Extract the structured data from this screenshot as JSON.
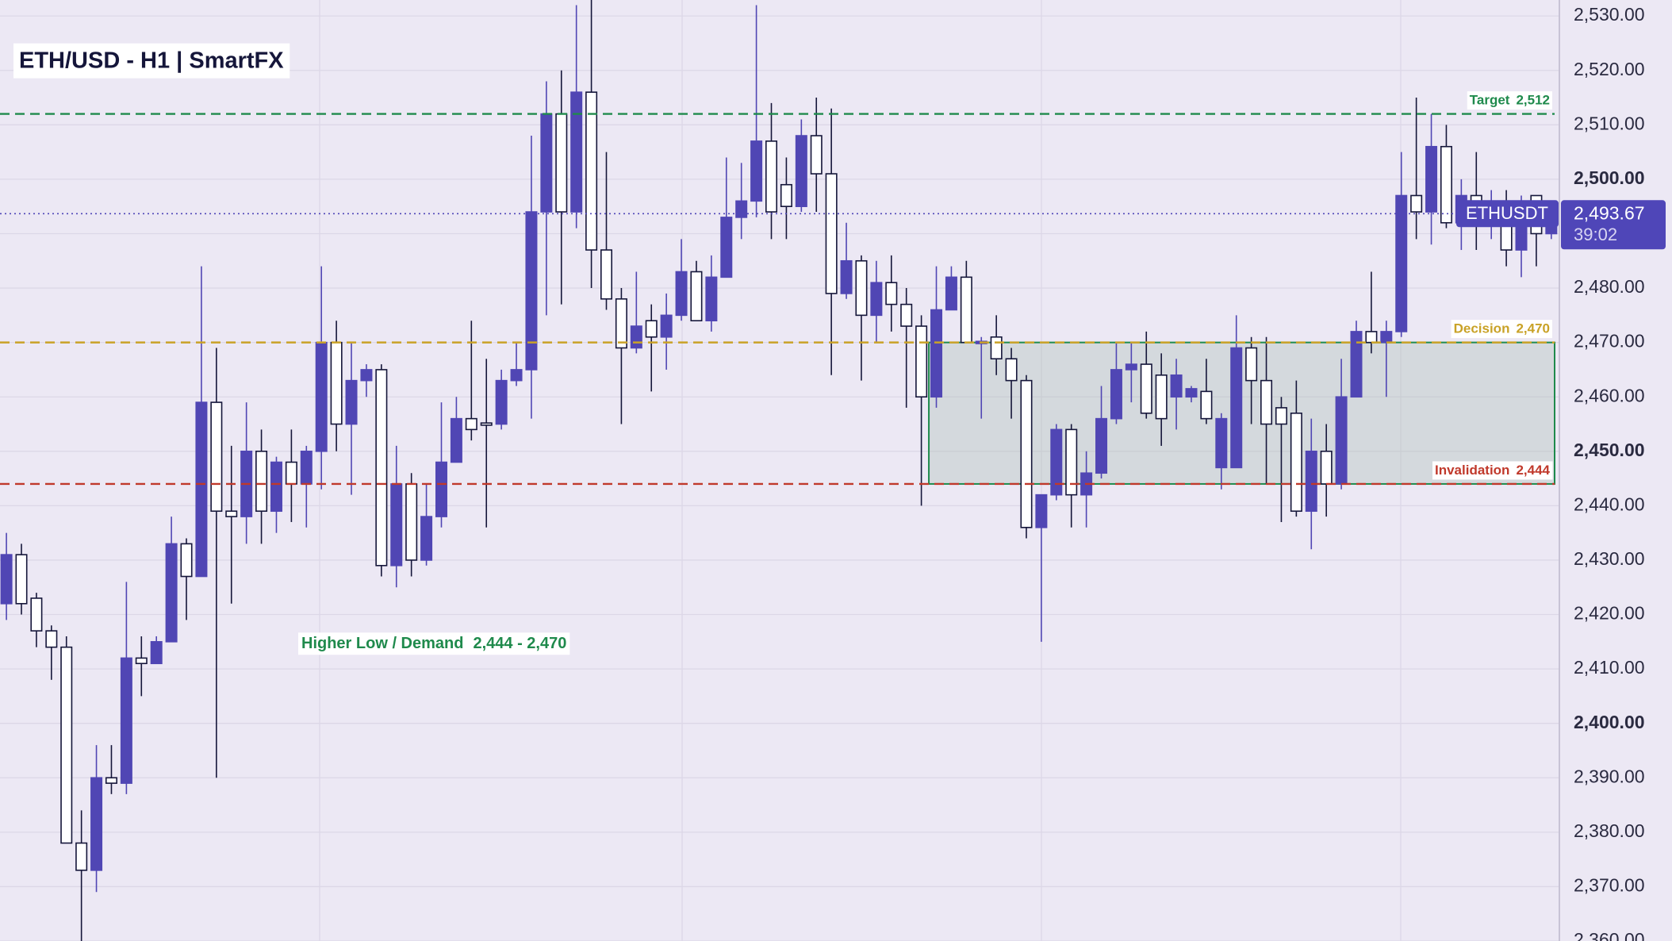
{
  "chart_data": {
    "type": "candlestick",
    "title": "ETH/USD  -  H1  |  SmartFX",
    "up_color": "#5046b4",
    "down_color": "#ffffff",
    "down_border": "#15163a",
    "open": [
      2422,
      2431,
      2423,
      2417,
      2414,
      2378,
      2373,
      2390,
      2389,
      2412,
      2411,
      2415,
      2433,
      2427,
      2459,
      2439,
      2438,
      2450,
      2439,
      2448,
      2444,
      2450,
      2470,
      2455,
      2463,
      2465,
      2429,
      2444,
      2430,
      2438,
      2448,
      2456,
      2455.2,
      2455,
      2463,
      2465,
      2494,
      2512,
      2494,
      2516,
      2487,
      2478,
      2469,
      2474,
      2471,
      2475,
      2483,
      2474,
      2482,
      2493,
      2496,
      2507,
      2499,
      2495,
      2508,
      2501,
      2479,
      2485,
      2475,
      2481,
      2477,
      2473,
      2460,
      2476,
      2482,
      2469.8,
      2471,
      2467,
      2463,
      2436,
      2442,
      2454,
      2442,
      2446,
      2456,
      2465,
      2466,
      2464,
      2460,
      2460,
      2461,
      2447,
      2447,
      2469,
      2463,
      2458,
      2457,
      2439,
      2450,
      2444,
      2460,
      2472,
      2470,
      2472,
      2497,
      2494,
      2506,
      2492,
      2497,
      2492,
      2496,
      2487,
      2497,
      2490
    ],
    "high": [
      2435,
      2433,
      2424,
      2418,
      2416,
      2384,
      2396,
      2396,
      2426,
      2416,
      2416,
      2438,
      2434,
      2484,
      2469,
      2451,
      2459,
      2454,
      2449,
      2454,
      2451,
      2484,
      2474,
      2470,
      2466,
      2466,
      2451,
      2446,
      2444,
      2459,
      2460,
      2474,
      2467,
      2465,
      2470,
      2508,
      2518,
      2520,
      2532,
      2533,
      2505,
      2480,
      2483,
      2477,
      2479,
      2489,
      2485,
      2486,
      2504,
      2503,
      2532,
      2514,
      2504,
      2511,
      2515,
      2513,
      2492,
      2486,
      2485,
      2486,
      2480,
      2475,
      2484,
      2484,
      2485,
      2471,
      2475,
      2469,
      2464,
      2442,
      2455,
      2455,
      2450,
      2462,
      2470,
      2470,
      2472,
      2468,
      2467,
      2462,
      2467,
      2457,
      2475,
      2471,
      2471,
      2460,
      2463,
      2456,
      2455,
      2467,
      2474,
      2483,
      2474,
      2505,
      2515,
      2512,
      2510,
      2500,
      2505,
      2498,
      2498,
      2497,
      2497,
      2495
    ],
    "low": [
      2419,
      2420,
      2414,
      2408,
      2378,
      2360,
      2369,
      2387,
      2387,
      2405,
      2411,
      2415,
      2419,
      2427,
      2390,
      2422,
      2433,
      2433,
      2435,
      2437,
      2436,
      2443,
      2450,
      2442,
      2460,
      2427,
      2425,
      2427,
      2429,
      2436,
      2448,
      2452,
      2436,
      2454,
      2462,
      2456,
      2475,
      2477,
      2491,
      2480,
      2476,
      2455,
      2468,
      2461,
      2465,
      2474,
      2474,
      2472,
      2482,
      2489,
      2493,
      2489,
      2489,
      2494,
      2494,
      2464,
      2478,
      2463,
      2470,
      2472,
      2458,
      2440,
      2458,
      2476,
      2470,
      2456,
      2464,
      2456,
      2434,
      2415,
      2441,
      2436,
      2436,
      2445,
      2455,
      2459,
      2456,
      2451,
      2454,
      2459,
      2455,
      2443,
      2447,
      2455,
      2444,
      2437,
      2438,
      2432,
      2438,
      2443,
      2460,
      2468,
      2460,
      2471,
      2489,
      2488,
      2491,
      2487,
      2487,
      2489,
      2484,
      2482,
      2484,
      2489
    ],
    "close": [
      2431,
      2422,
      2417,
      2414,
      2378,
      2373,
      2390,
      2389,
      2412,
      2411,
      2415,
      2433,
      2427,
      2459,
      2439,
      2438,
      2450,
      2439,
      2448,
      2444,
      2450,
      2470,
      2455,
      2463,
      2465,
      2429,
      2444,
      2430,
      2438,
      2448,
      2456,
      2454,
      2454.8,
      2463,
      2465,
      2494,
      2512,
      2494,
      2516,
      2487,
      2478,
      2469,
      2473,
      2471,
      2475,
      2483,
      2474,
      2482,
      2493,
      2496,
      2507,
      2494,
      2495,
      2508,
      2501,
      2479,
      2485,
      2475,
      2481,
      2477,
      2473,
      2460,
      2476,
      2482,
      2470,
      2470.2,
      2467,
      2463,
      2436,
      2442,
      2454,
      2442,
      2446,
      2456,
      2465,
      2466,
      2457,
      2456,
      2464,
      2461.5,
      2456,
      2456,
      2469,
      2463,
      2455,
      2455,
      2439,
      2450,
      2444,
      2460,
      2472,
      2470,
      2472,
      2497,
      2494,
      2506,
      2492,
      2497,
      2496,
      2496,
      2487,
      2496,
      2490,
      2493.67
    ],
    "ylim": [
      2360,
      2532.94
    ],
    "yticks": [
      {
        "value": 2360,
        "label": "2,360.00"
      },
      {
        "value": 2370,
        "label": "2,370.00"
      },
      {
        "value": 2380,
        "label": "2,380.00"
      },
      {
        "value": 2390,
        "label": "2,390.00"
      },
      {
        "value": 2400,
        "label": "2,400.00"
      },
      {
        "value": 2410,
        "label": "2,410.00"
      },
      {
        "value": 2420,
        "label": "2,420.00"
      },
      {
        "value": 2430,
        "label": "2,430.00"
      },
      {
        "value": 2440,
        "label": "2,440.00"
      },
      {
        "value": 2450,
        "label": "2,450.00"
      },
      {
        "value": 2460,
        "label": "2,460.00"
      },
      {
        "value": 2470,
        "label": "2,470.00"
      },
      {
        "value": 2480,
        "label": "2,480.00"
      },
      {
        "value": 2490,
        "label": "2,490.00"
      },
      {
        "value": 2500,
        "label": "2,500.00"
      },
      {
        "value": 2510,
        "label": "2,510.00"
      },
      {
        "value": 2520,
        "label": "2,520.00"
      },
      {
        "value": 2530,
        "label": "2,530.00"
      }
    ],
    "grid": true,
    "levels": [
      {
        "name": "Target",
        "value": 2512,
        "value_label": "2,512",
        "color": "#1f8a4c"
      },
      {
        "name": "Decision",
        "value": 2470,
        "value_label": "2,470",
        "color": "#c9a227"
      },
      {
        "name": "Invalidation",
        "value": 2444,
        "value_label": "2,444",
        "color": "#c0392b"
      }
    ],
    "zone": {
      "label": "Higher Low / Demand",
      "range_label": "2,444 - 2,470",
      "low": 2444,
      "high": 2470,
      "color": "#1f8a4c"
    },
    "price_tag": {
      "symbol": "ETHUSDT",
      "value": 2493.67,
      "value_label": "2,493.67",
      "countdown": "39:02",
      "color": "#4f46b8"
    }
  }
}
